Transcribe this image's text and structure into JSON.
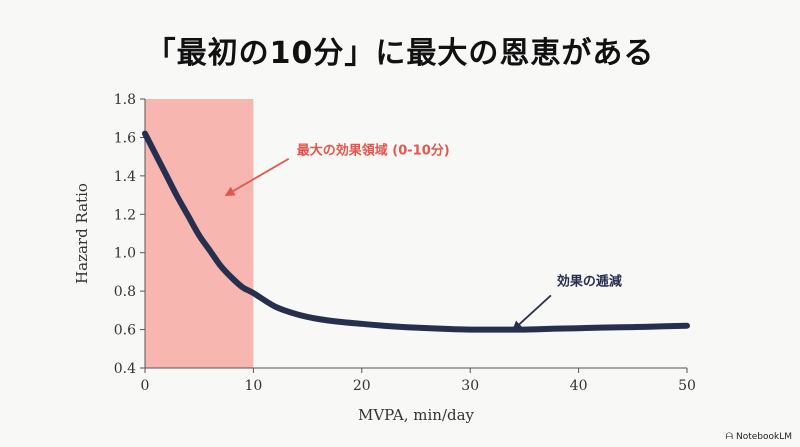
{
  "title": "「最初の10分」に最大の恩恵がある",
  "brand": {
    "name": "NotebookLM",
    "icon": "notebooklm-logo-icon"
  },
  "chart_data": {
    "type": "line",
    "xlabel": "MVPA, min/day",
    "ylabel": "Hazard Ratio",
    "xlim": [
      0,
      50
    ],
    "ylim": [
      0.4,
      1.8
    ],
    "x_ticks": [
      0,
      10,
      20,
      30,
      40,
      50
    ],
    "y_ticks": [
      0.4,
      0.6,
      0.8,
      1.0,
      1.2,
      1.4,
      1.6,
      1.8
    ],
    "y_tick_labels": [
      "0.4",
      "0.6",
      "0.8",
      "1.0",
      "1.2",
      "1.4",
      "1.6",
      "1.8"
    ],
    "series": [
      {
        "name": "Hazard Ratio",
        "color": "#272f4f",
        "x": [
          0,
          1,
          2,
          3,
          4,
          5,
          6,
          7,
          8,
          9,
          10,
          12,
          14,
          16,
          18,
          20,
          22,
          25,
          28,
          30,
          32,
          35,
          38,
          40,
          42,
          45,
          48,
          50
        ],
        "y": [
          1.62,
          1.51,
          1.4,
          1.29,
          1.19,
          1.09,
          1.01,
          0.93,
          0.87,
          0.82,
          0.79,
          0.72,
          0.68,
          0.655,
          0.64,
          0.63,
          0.62,
          0.61,
          0.603,
          0.6,
          0.6,
          0.6,
          0.605,
          0.607,
          0.61,
          0.613,
          0.617,
          0.62
        ]
      }
    ],
    "highlight_region": {
      "x_from": 0,
      "x_to": 10,
      "color": "#f8b6b1"
    },
    "annotations": [
      {
        "text": "最大の効果領域 (0-10分)",
        "x": 14,
        "y": 1.51,
        "color": "#e2574c",
        "arrow_to": [
          7.5,
          1.3
        ]
      },
      {
        "text": "効果の逓減",
        "x": 38,
        "y": 0.83,
        "color": "#272f4f",
        "arrow_to": [
          34,
          0.6
        ]
      }
    ]
  }
}
